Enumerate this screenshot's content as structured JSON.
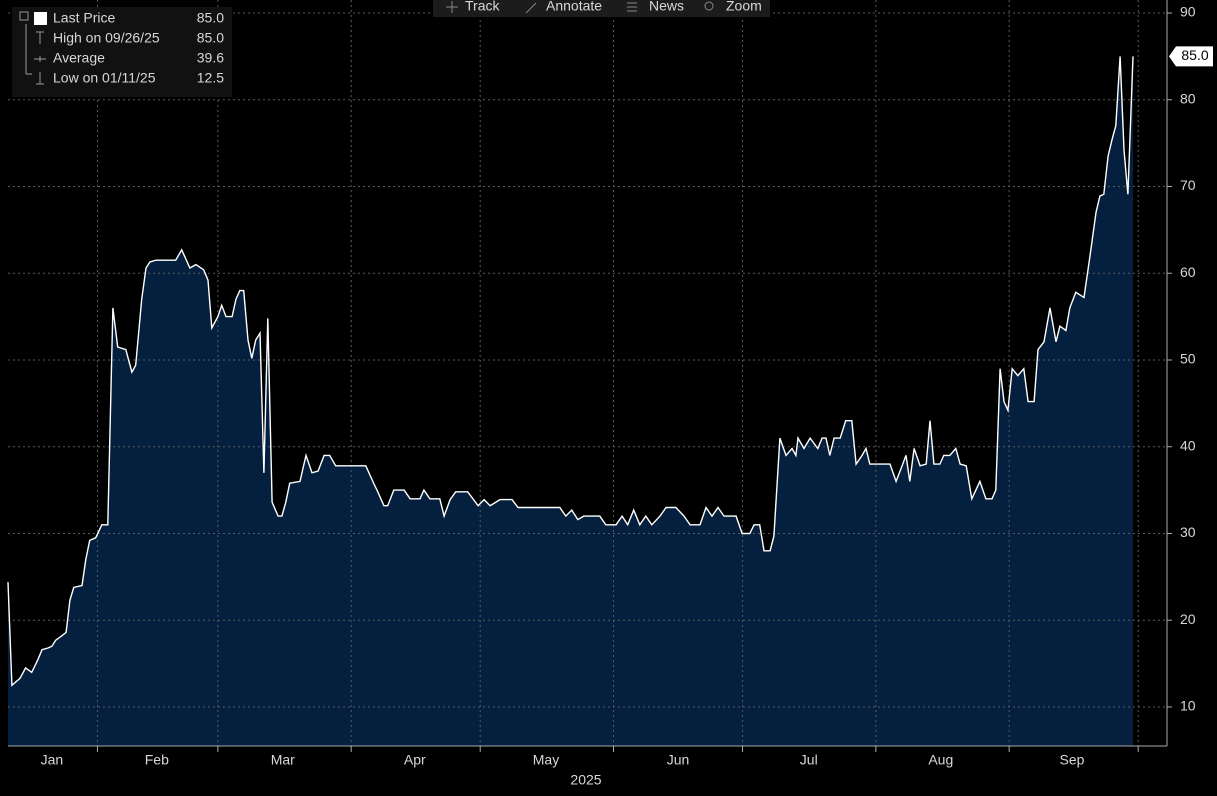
{
  "toolbar": [
    "Track",
    "Annotate",
    "News",
    "Zoom"
  ],
  "legend": [
    {
      "label": "Last Price",
      "value": "85.0"
    },
    {
      "label": "High on 09/26/25",
      "value": "85.0"
    },
    {
      "label": "Average",
      "value": "39.6"
    },
    {
      "label": "Low on 01/11/25",
      "value": "12.5"
    }
  ],
  "chart_data": {
    "type": "area",
    "x_label": "2025",
    "last_label": "85.0",
    "line_color": "#ffffff",
    "fill_color": "#05203f",
    "grid": true,
    "xlim": [
      11.2,
      280.7
    ],
    "ylim": [
      5.5,
      91.5
    ],
    "yticks": [
      10,
      20,
      30,
      40,
      50,
      60,
      70,
      80,
      90
    ],
    "xgrid": [
      32,
      60,
      91,
      121,
      152,
      182,
      213,
      244,
      274
    ],
    "xticks": [
      {
        "value": 21.4,
        "label": "Jan"
      },
      {
        "value": 45.8,
        "label": "Feb"
      },
      {
        "value": 75.1,
        "label": "Mar"
      },
      {
        "value": 105.8,
        "label": "Apr"
      },
      {
        "value": 136.3,
        "label": "May"
      },
      {
        "value": 167.0,
        "label": "Jun"
      },
      {
        "value": 197.4,
        "label": "Jul"
      },
      {
        "value": 228.1,
        "label": "Aug"
      },
      {
        "value": 258.6,
        "label": "Sep"
      }
    ],
    "series": [
      {
        "name": "Last Price",
        "x": [
          11.2,
          12.1,
          14.0,
          15.3,
          16.7,
          18.1,
          19.1,
          20.5,
          21.4,
          22.3,
          23.7,
          24.7,
          25.6,
          26.5,
          28.4,
          29.3,
          30.2,
          31.6,
          33.0,
          34.4,
          35.6,
          36.7,
          38.6,
          40.0,
          40.9,
          42.3,
          43.3,
          44.2,
          45.6,
          50.2,
          51.6,
          53.5,
          54.9,
          56.7,
          57.7,
          58.6,
          60.0,
          60.9,
          61.9,
          63.3,
          64.2,
          65.1,
          66.0,
          67.0,
          67.9,
          68.8,
          69.8,
          70.7,
          71.6,
          72.6,
          74.0,
          74.9,
          75.8,
          76.7,
          79.1,
          80.5,
          81.9,
          83.3,
          84.7,
          86.0,
          87.4,
          94.4,
          96.3,
          97.2,
          98.6,
          99.5,
          100.9,
          103.3,
          104.7,
          107.0,
          107.9,
          109.3,
          111.6,
          112.6,
          114.0,
          115.3,
          118.1,
          120.5,
          121.9,
          123.3,
          125.6,
          128.4,
          129.8,
          139.5,
          140.9,
          142.3,
          143.7,
          145.1,
          148.8,
          150.2,
          152.6,
          154.0,
          155.3,
          156.7,
          158.1,
          159.5,
          160.9,
          162.8,
          164.2,
          166.5,
          168.4,
          169.8,
          172.1,
          173.5,
          174.9,
          176.3,
          177.7,
          180.5,
          181.9,
          183.7,
          184.7,
          186.0,
          187.0,
          188.4,
          189.3,
          190.7,
          192.1,
          193.5,
          194.4,
          194.9,
          196.3,
          197.7,
          199.5,
          200.5,
          201.4,
          202.3,
          203.3,
          204.7,
          206.0,
          207.4,
          208.4,
          209.8,
          210.7,
          211.6,
          216.3,
          217.7,
          219.1,
          220.0,
          220.9,
          221.9,
          223.3,
          224.7,
          225.6,
          226.5,
          227.9,
          228.8,
          230.2,
          231.6,
          232.6,
          234.0,
          235.3,
          237.2,
          238.6,
          240.0,
          240.9,
          241.9,
          242.8,
          243.7,
          244.7,
          246.0,
          247.4,
          248.4,
          249.8,
          250.7,
          252.1,
          253.5,
          254.9,
          255.8,
          257.2,
          258.1,
          259.5,
          261.4,
          262.8,
          264.2,
          265.1,
          266.0,
          267.0,
          267.9,
          268.8,
          269.8,
          270.7,
          271.6,
          272.8
        ],
        "values": [
          24.4,
          12.5,
          13.3,
          14.5,
          14,
          15.4,
          16.6,
          16.8,
          17,
          17.7,
          18.2,
          18.6,
          22.3,
          23.8,
          24,
          27,
          29.2,
          29.5,
          31,
          31,
          56,
          51.5,
          51.2,
          48.6,
          49.4,
          57,
          60.6,
          61.3,
          61.5,
          61.5,
          62.7,
          60.6,
          61,
          60.4,
          59.2,
          53.7,
          55,
          56.3,
          55,
          55,
          57,
          58,
          58,
          52.3,
          50.2,
          52.3,
          53.1,
          37,
          54.8,
          33.6,
          32,
          32,
          33.6,
          35.8,
          36,
          39,
          37,
          37.2,
          39,
          39,
          37.8,
          37.8,
          35.7,
          34.8,
          33.2,
          33.2,
          35,
          35,
          34,
          34,
          35,
          34,
          34,
          32,
          33.9,
          34.8,
          34.8,
          33.2,
          33.9,
          33.2,
          33.9,
          33.9,
          33,
          33,
          32,
          32.7,
          31.6,
          32,
          32,
          31,
          31,
          32,
          31,
          32.7,
          31,
          32,
          31,
          32,
          33,
          33,
          32,
          31,
          31,
          33,
          32,
          33,
          32,
          32,
          30,
          30,
          31,
          31,
          28,
          28,
          29.7,
          41,
          39,
          39.8,
          39,
          41,
          39.8,
          41,
          39.8,
          41,
          41,
          39,
          41,
          41,
          43,
          43,
          38,
          39,
          39.8,
          38,
          38,
          36,
          37.8,
          39,
          36,
          39.8,
          37.8,
          38,
          43,
          38,
          38,
          39,
          39,
          39.8,
          38,
          37.8,
          34,
          36,
          34,
          34,
          35,
          49,
          45.2,
          44.2,
          49,
          48.2,
          49,
          45.2,
          45.2,
          51.2,
          52.1,
          56,
          52.1,
          53.9,
          53.4,
          56,
          57.8,
          57.2,
          62,
          67,
          68.9,
          69.1,
          73.5,
          75.4,
          77,
          85,
          74.2,
          69.1,
          85
        ]
      }
    ]
  }
}
